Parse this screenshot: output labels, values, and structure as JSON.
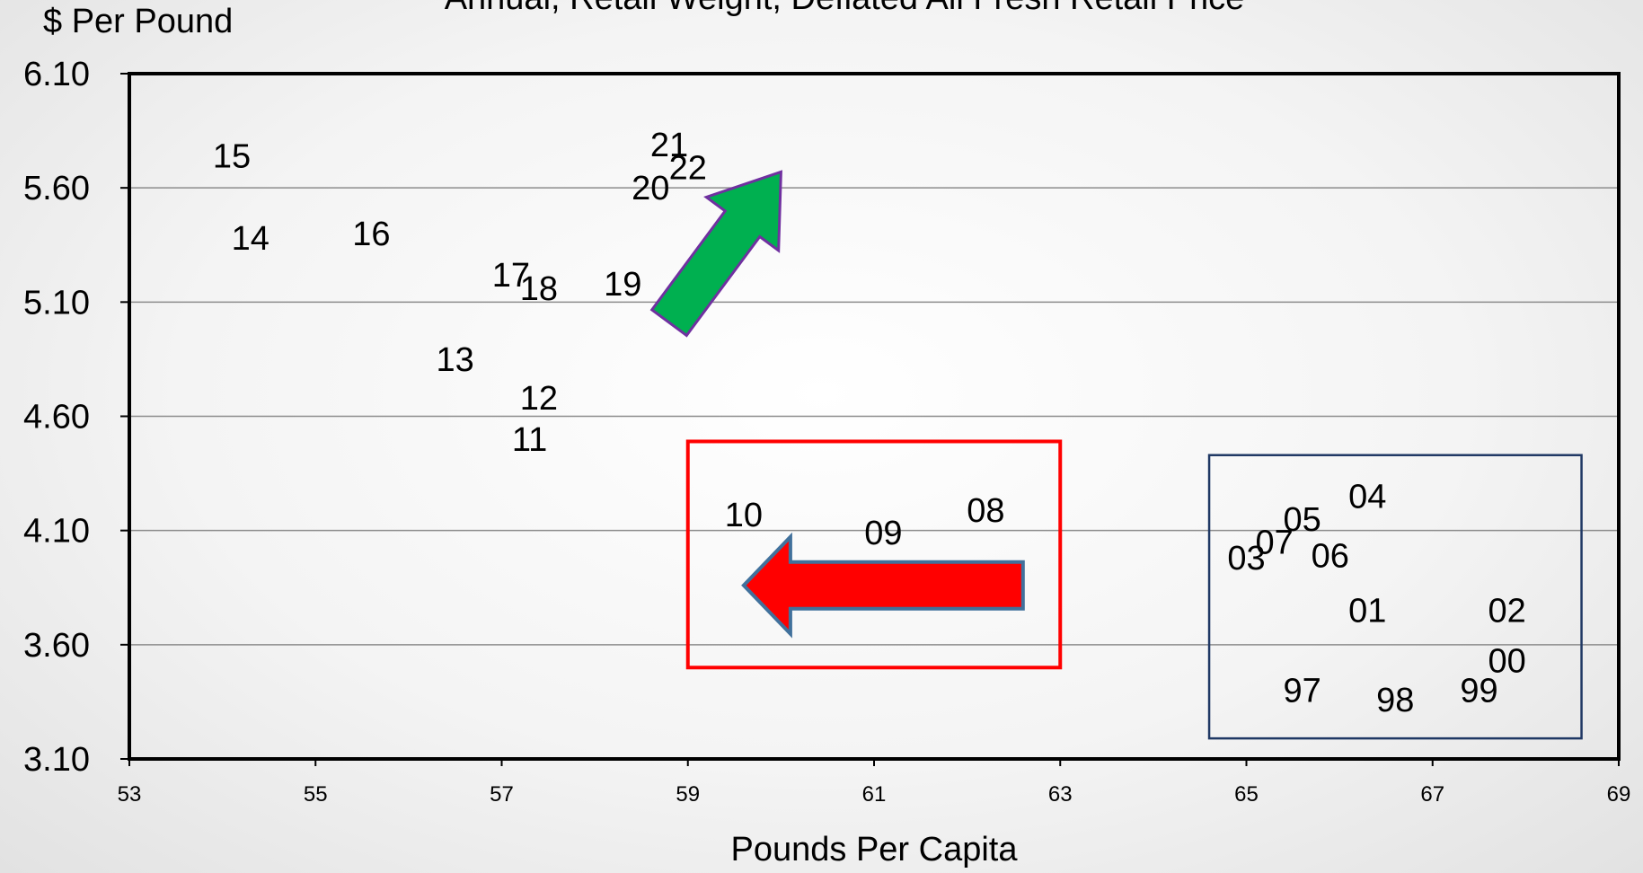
{
  "chart_data": {
    "type": "scatter",
    "title": "Annual, Retail Weight, Deflated All Fresh Retail Price",
    "ylabel": "$ Per Pound",
    "xlabel": "Pounds Per Capita",
    "xlim": [
      53,
      69
    ],
    "ylim": [
      3.1,
      6.1
    ],
    "x_ticks": [
      "53",
      "55",
      "57",
      "59",
      "61",
      "63",
      "65",
      "67",
      "69"
    ],
    "y_ticks": [
      "3.10",
      "3.60",
      "4.10",
      "4.60",
      "5.10",
      "5.60",
      "6.10"
    ],
    "grid": "horizontal",
    "points": [
      {
        "label": "97",
        "x": 65.6,
        "y": 3.4
      },
      {
        "label": "98",
        "x": 66.6,
        "y": 3.36
      },
      {
        "label": "99",
        "x": 67.5,
        "y": 3.4
      },
      {
        "label": "00",
        "x": 67.8,
        "y": 3.53
      },
      {
        "label": "01",
        "x": 66.3,
        "y": 3.75
      },
      {
        "label": "02",
        "x": 67.8,
        "y": 3.75
      },
      {
        "label": "03",
        "x": 65.0,
        "y": 3.98
      },
      {
        "label": "04",
        "x": 66.3,
        "y": 4.25
      },
      {
        "label": "05",
        "x": 65.6,
        "y": 4.15
      },
      {
        "label": "06",
        "x": 65.9,
        "y": 3.99
      },
      {
        "label": "07",
        "x": 65.3,
        "y": 4.05
      },
      {
        "label": "08",
        "x": 62.2,
        "y": 4.19
      },
      {
        "label": "09",
        "x": 61.1,
        "y": 4.09
      },
      {
        "label": "10",
        "x": 59.6,
        "y": 4.17
      },
      {
        "label": "11",
        "x": 57.3,
        "y": 4.5
      },
      {
        "label": "12",
        "x": 57.4,
        "y": 4.68
      },
      {
        "label": "13",
        "x": 56.5,
        "y": 4.85
      },
      {
        "label": "14",
        "x": 54.3,
        "y": 5.38
      },
      {
        "label": "15",
        "x": 54.1,
        "y": 5.74
      },
      {
        "label": "16",
        "x": 55.6,
        "y": 5.4
      },
      {
        "label": "17",
        "x": 57.1,
        "y": 5.22
      },
      {
        "label": "18",
        "x": 57.4,
        "y": 5.16
      },
      {
        "label": "19",
        "x": 58.3,
        "y": 5.18
      },
      {
        "label": "20",
        "x": 58.6,
        "y": 5.6
      },
      {
        "label": "21",
        "x": 58.8,
        "y": 5.79
      },
      {
        "label": "22",
        "x": 59.0,
        "y": 5.69
      }
    ],
    "annotations": [
      {
        "name": "recent-trend-arrow",
        "kind": "arrow",
        "color": "#00b050",
        "from": {
          "x": 58.8,
          "y": 5.01
        },
        "to": {
          "x": 60.0,
          "y": 5.67
        }
      },
      {
        "name": "middle-period-arrow",
        "kind": "arrow",
        "color": "#ff0000",
        "from": {
          "x": 62.6,
          "y": 3.86
        },
        "to": {
          "x": 59.6,
          "y": 3.86
        }
      },
      {
        "name": "middle-period-box",
        "kind": "box",
        "color": "#ff0000",
        "x": [
          59.0,
          63.0
        ],
        "y": [
          3.5,
          4.49
        ]
      },
      {
        "name": "early-period-box",
        "kind": "box",
        "color": "#1f3864",
        "x": [
          64.6,
          68.6
        ],
        "y": [
          3.19,
          4.43
        ]
      }
    ]
  }
}
